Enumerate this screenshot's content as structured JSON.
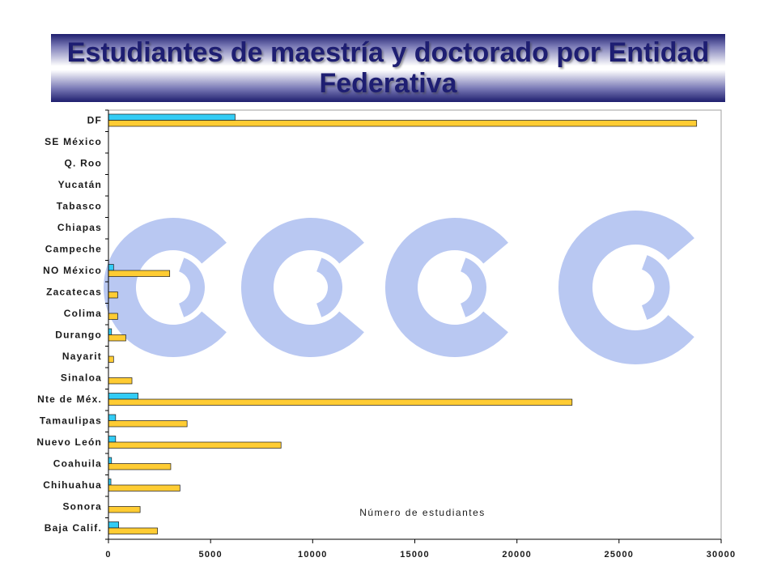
{
  "chart_data": {
    "type": "bar",
    "orientation": "horizontal",
    "title": "Estudiantes de maestría y doctorado por Entidad Federativa",
    "xlabel": "Número de estudiantes",
    "ylabel": "",
    "categories": [
      "DF",
      "SE México",
      "Q. Roo",
      "Yucatán",
      "Tabasco",
      "Chiapas",
      "Campeche",
      "NO México",
      "Zacatecas",
      "Colima",
      "Durango",
      "Nayarit",
      "Sinaloa",
      "Nte de Méx.",
      "Tamaulipas",
      "Nuevo León",
      "Coahuila",
      "Chihuahua",
      "Sonora",
      "Baja Calif."
    ],
    "series": [
      {
        "color": "#33CCF5",
        "values": [
          6200,
          0,
          0,
          0,
          0,
          0,
          0,
          250,
          0,
          0,
          150,
          0,
          0,
          1450,
          350,
          350,
          150,
          120,
          0,
          500
        ]
      },
      {
        "color": "#FFCC33",
        "values": [
          28800,
          0,
          0,
          0,
          0,
          0,
          0,
          3000,
          450,
          450,
          850,
          250,
          1150,
          22700,
          3850,
          8450,
          3050,
          3500,
          1550,
          2400
        ]
      }
    ],
    "xlim": [
      0,
      30000
    ],
    "x_ticks": [
      0,
      5000,
      10000,
      15000,
      20000,
      25000,
      30000
    ],
    "grid": false,
    "legend": false
  },
  "theme": {
    "title_color": "#1E1E72",
    "watermark_color": "#B9C8F2",
    "watermark_icon": "ring-logo-icon"
  }
}
